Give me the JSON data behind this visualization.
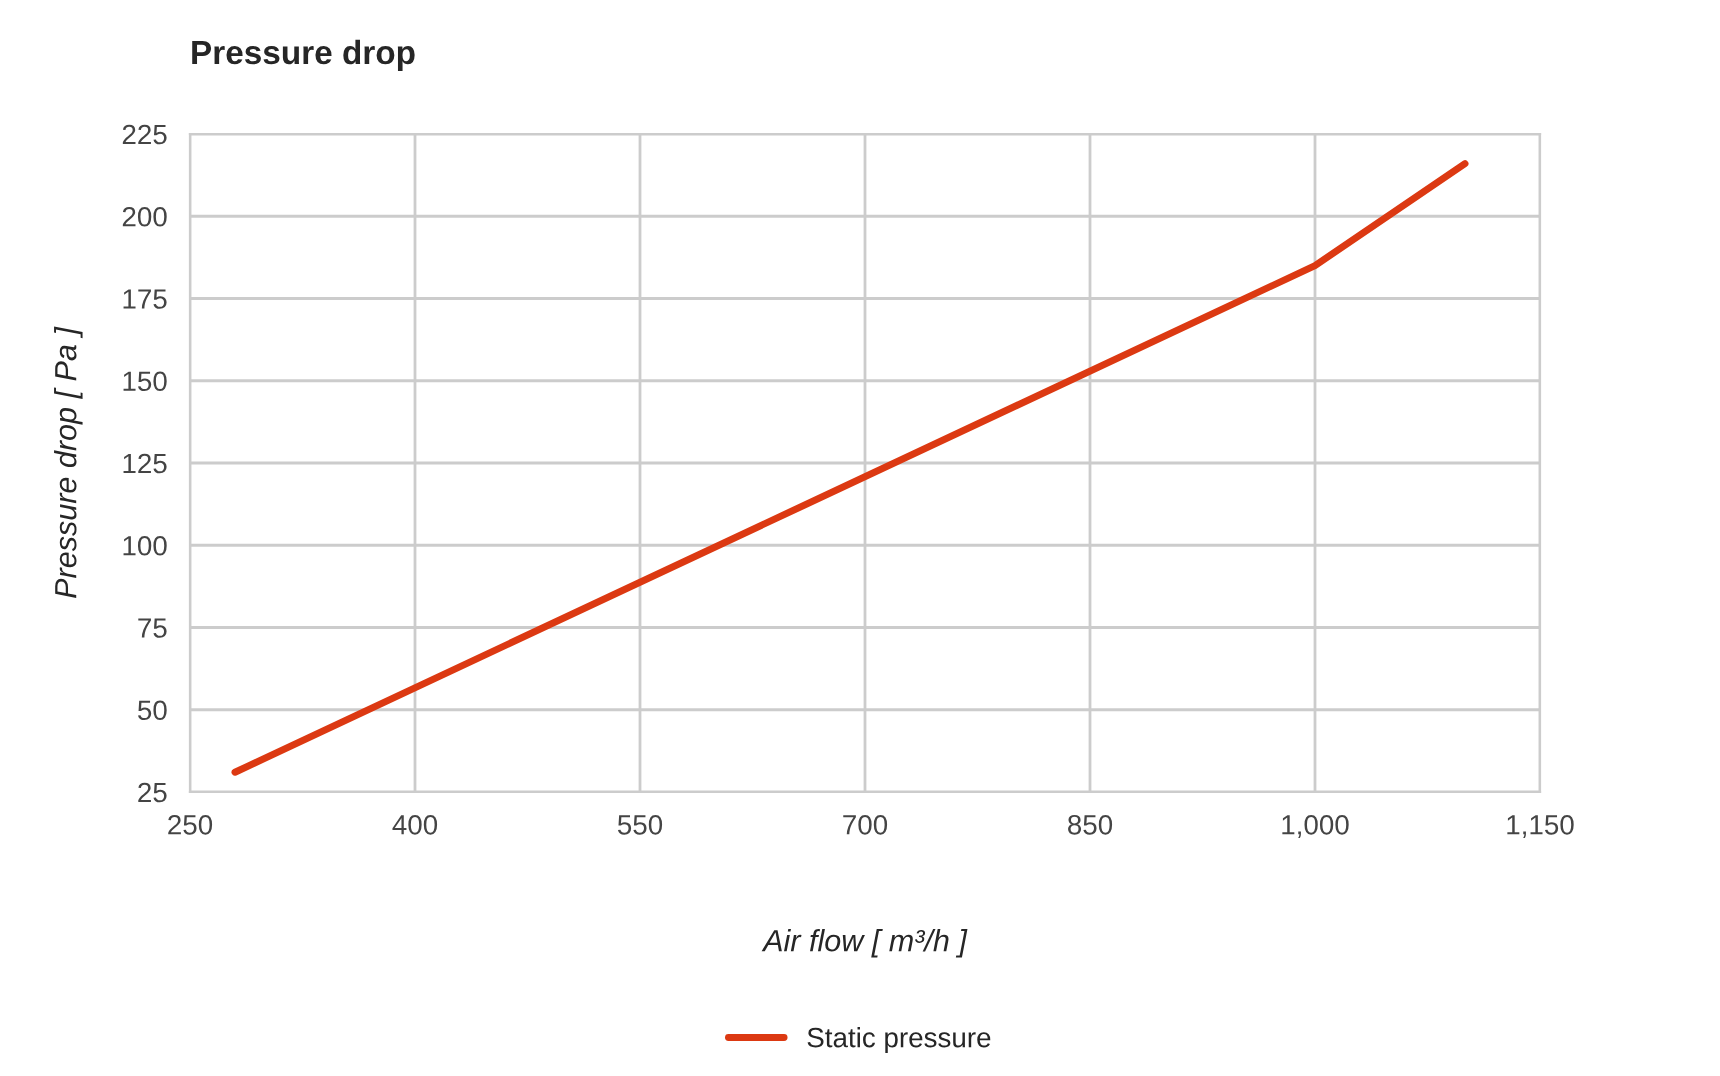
{
  "chart_data": {
    "type": "line",
    "title": "Pressure drop",
    "xlabel": "Air flow [ m³/h ]",
    "ylabel": "Pressure drop [ Pa ]",
    "x": [
      280,
      1000,
      1100
    ],
    "series": [
      {
        "name": "Static pressure",
        "color": "#dc3912",
        "values": [
          31,
          185,
          216
        ]
      }
    ],
    "xlim": [
      250,
      1150
    ],
    "xticks": [
      250,
      400,
      550,
      700,
      850,
      {
        "value": 1000,
        "label": "1,000"
      },
      {
        "value": 1150,
        "label": "1,150"
      }
    ],
    "ylim": [
      25,
      225
    ],
    "yticks": [
      25,
      50,
      75,
      100,
      125,
      150,
      175,
      200,
      225
    ],
    "grid": true,
    "legend": "bottom",
    "marker": "none",
    "line_style": "solid"
  }
}
